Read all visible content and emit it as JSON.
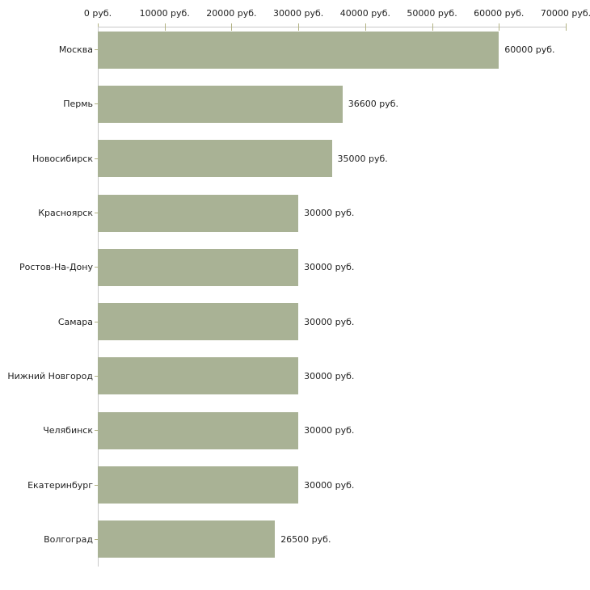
{
  "chart_data": {
    "type": "bar",
    "orientation": "horizontal",
    "title": "",
    "xlabel": "",
    "ylabel": "",
    "unit": "руб.",
    "categories": [
      "Москва",
      "Пермь",
      "Новосибирск",
      "Красноярск",
      "Ростов-На-Дону",
      "Самара",
      "Нижний Новгород",
      "Челябинск",
      "Екатеринбург",
      "Волгоград"
    ],
    "values": [
      60000,
      36600,
      35000,
      30000,
      30000,
      30000,
      30000,
      30000,
      30000,
      26500
    ],
    "value_labels": [
      "60000 руб.",
      "36600 руб.",
      "35000 руб.",
      "30000 руб.",
      "30000 руб.",
      "30000 руб.",
      "30000 руб.",
      "30000 руб.",
      "30000 руб.",
      "26500 руб."
    ],
    "x_ticks": [
      0,
      10000,
      20000,
      30000,
      40000,
      50000,
      60000,
      70000
    ],
    "x_tick_labels": [
      "0 руб.",
      "10000 руб.",
      "20000 руб.",
      "30000 руб.",
      "40000 руб.",
      "50000 руб.",
      "60000 руб.",
      "70000 руб."
    ],
    "xlim": [
      0,
      70000
    ],
    "grid": false,
    "legend": false,
    "axis_position": "top",
    "colors": {
      "bar_fill": "#a9b295",
      "axis_line": "#c9c9c9",
      "tick_mark": "#b2b283",
      "text": "#222222",
      "background": "#ffffff"
    }
  }
}
